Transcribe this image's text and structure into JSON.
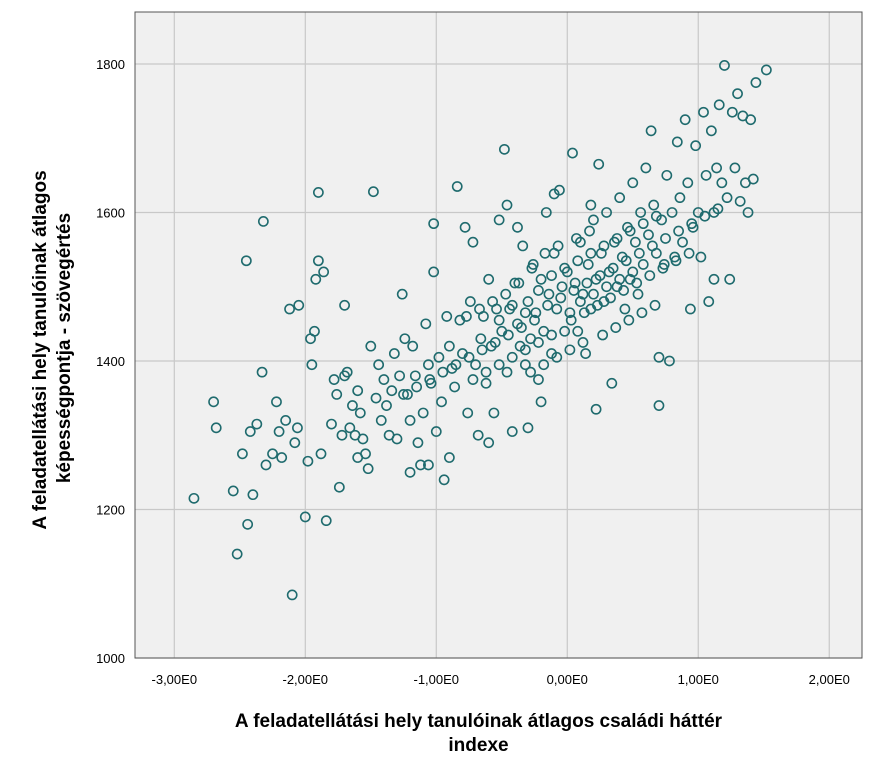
{
  "chart_data": {
    "type": "scatter",
    "title": "",
    "xlabel": [
      "A feladatellátási hely tanulóinak átlagos családi háttér",
      "indexe"
    ],
    "ylabel": [
      "A feladatellátási hely tanulóinak átlagos",
      "képességpontja - szövegértés"
    ],
    "xlim": [
      -3.3,
      2.25
    ],
    "ylim": [
      1000,
      1870
    ],
    "x_ticks": [
      -3,
      -2,
      -1,
      0,
      1,
      2
    ],
    "x_tick_labels": [
      "-3,00E0",
      "-2,00E0",
      "-1,00E0",
      "0,00E0",
      "1,00E0",
      "2,00E0"
    ],
    "y_ticks": [
      1000,
      1200,
      1400,
      1600,
      1800
    ],
    "y_tick_labels": [
      "1000",
      "1200",
      "1400",
      "1600",
      "1800"
    ],
    "grid": true,
    "colors": {
      "marker": "#1f6b6e",
      "plot_bg": "#f0f0f0",
      "grid": "#c8c8c8"
    },
    "points": [
      [
        -2.85,
        1215
      ],
      [
        -2.7,
        1345
      ],
      [
        -2.68,
        1310
      ],
      [
        -2.55,
        1225
      ],
      [
        -2.52,
        1140
      ],
      [
        -2.48,
        1275
      ],
      [
        -2.44,
        1180
      ],
      [
        -2.42,
        1305
      ],
      [
        -2.4,
        1220
      ],
      [
        -2.37,
        1315
      ],
      [
        -2.33,
        1385
      ],
      [
        -2.3,
        1260
      ],
      [
        -2.32,
        1588
      ],
      [
        -2.45,
        1535
      ],
      [
        -2.25,
        1275
      ],
      [
        -2.22,
        1345
      ],
      [
        -2.2,
        1305
      ],
      [
        -2.18,
        1270
      ],
      [
        -2.15,
        1320
      ],
      [
        -2.12,
        1470
      ],
      [
        -2.1,
        1085
      ],
      [
        -2.08,
        1290
      ],
      [
        -2.06,
        1310
      ],
      [
        -2.05,
        1475
      ],
      [
        -2.0,
        1190
      ],
      [
        -1.98,
        1265
      ],
      [
        -1.96,
        1430
      ],
      [
        -1.95,
        1395
      ],
      [
        -1.93,
        1440
      ],
      [
        -1.92,
        1510
      ],
      [
        -1.9,
        1535
      ],
      [
        -1.88,
        1275
      ],
      [
        -1.86,
        1520
      ],
      [
        -1.84,
        1185
      ],
      [
        -1.9,
        1627
      ],
      [
        -1.8,
        1315
      ],
      [
        -1.78,
        1375
      ],
      [
        -1.76,
        1355
      ],
      [
        -1.74,
        1230
      ],
      [
        -1.72,
        1300
      ],
      [
        -1.7,
        1475
      ],
      [
        -1.68,
        1385
      ],
      [
        -1.66,
        1310
      ],
      [
        -1.64,
        1340
      ],
      [
        -1.62,
        1300
      ],
      [
        -1.6,
        1360
      ],
      [
        -1.58,
        1330
      ],
      [
        -1.56,
        1295
      ],
      [
        -1.54,
        1275
      ],
      [
        -1.52,
        1255
      ],
      [
        -1.5,
        1420
      ],
      [
        -1.48,
        1628
      ],
      [
        -1.46,
        1350
      ],
      [
        -1.44,
        1395
      ],
      [
        -1.42,
        1320
      ],
      [
        -1.4,
        1375
      ],
      [
        -1.38,
        1340
      ],
      [
        -1.36,
        1300
      ],
      [
        -1.34,
        1360
      ],
      [
        -1.32,
        1410
      ],
      [
        -1.3,
        1295
      ],
      [
        -1.28,
        1380
      ],
      [
        -1.26,
        1490
      ],
      [
        -1.24,
        1430
      ],
      [
        -1.22,
        1355
      ],
      [
        -1.2,
        1320
      ],
      [
        -1.18,
        1420
      ],
      [
        -1.16,
        1380
      ],
      [
        -1.14,
        1290
      ],
      [
        -1.12,
        1260
      ],
      [
        -1.1,
        1330
      ],
      [
        -1.08,
        1450
      ],
      [
        -1.06,
        1395
      ],
      [
        -1.04,
        1370
      ],
      [
        -1.02,
        1520
      ],
      [
        -1.0,
        1305
      ],
      [
        -0.98,
        1405
      ],
      [
        -0.96,
        1345
      ],
      [
        -0.94,
        1240
      ],
      [
        -0.92,
        1460
      ],
      [
        -0.9,
        1420
      ],
      [
        -0.88,
        1390
      ],
      [
        -0.86,
        1365
      ],
      [
        -0.84,
        1635
      ],
      [
        -0.82,
        1455
      ],
      [
        -0.8,
        1410
      ],
      [
        -0.78,
        1580
      ],
      [
        -0.76,
        1330
      ],
      [
        -0.74,
        1480
      ],
      [
        -0.72,
        1560
      ],
      [
        -0.7,
        1395
      ],
      [
        -0.68,
        1300
      ],
      [
        -0.66,
        1430
      ],
      [
        -0.64,
        1460
      ],
      [
        -0.62,
        1370
      ],
      [
        -0.6,
        1510
      ],
      [
        -0.58,
        1420
      ],
      [
        -0.56,
        1330
      ],
      [
        -0.54,
        1470
      ],
      [
        -0.52,
        1590
      ],
      [
        -0.5,
        1440
      ],
      [
        -0.48,
        1685
      ],
      [
        -0.46,
        1385
      ],
      [
        -0.44,
        1470
      ],
      [
        -0.42,
        1305
      ],
      [
        -0.4,
        1505
      ],
      [
        -0.38,
        1450
      ],
      [
        -0.36,
        1420
      ],
      [
        -0.34,
        1555
      ],
      [
        -0.32,
        1395
      ],
      [
        -0.3,
        1480
      ],
      [
        -0.28,
        1430
      ],
      [
        -0.26,
        1530
      ],
      [
        -0.24,
        1465
      ],
      [
        -0.22,
        1375
      ],
      [
        -0.2,
        1510
      ],
      [
        -0.18,
        1440
      ],
      [
        -0.16,
        1600
      ],
      [
        -0.14,
        1490
      ],
      [
        -0.12,
        1410
      ],
      [
        -0.1,
        1545
      ],
      [
        -0.08,
        1470
      ],
      [
        -0.06,
        1630
      ],
      [
        -0.04,
        1500
      ],
      [
        -0.02,
        1440
      ],
      [
        0.0,
        1520
      ],
      [
        0.02,
        1465
      ],
      [
        0.04,
        1680
      ],
      [
        0.06,
        1505
      ],
      [
        0.08,
        1440
      ],
      [
        0.1,
        1560
      ],
      [
        0.12,
        1490
      ],
      [
        0.14,
        1410
      ],
      [
        0.16,
        1530
      ],
      [
        0.18,
        1470
      ],
      [
        0.2,
        1590
      ],
      [
        0.22,
        1510
      ],
      [
        0.24,
        1665
      ],
      [
        0.26,
        1545
      ],
      [
        0.28,
        1480
      ],
      [
        0.3,
        1600
      ],
      [
        0.32,
        1520
      ],
      [
        0.34,
        1370
      ],
      [
        0.36,
        1560
      ],
      [
        0.38,
        1500
      ],
      [
        0.4,
        1620
      ],
      [
        0.42,
        1540
      ],
      [
        0.44,
        1470
      ],
      [
        0.46,
        1580
      ],
      [
        0.48,
        1510
      ],
      [
        0.5,
        1640
      ],
      [
        0.52,
        1560
      ],
      [
        0.54,
        1490
      ],
      [
        0.56,
        1600
      ],
      [
        0.58,
        1530
      ],
      [
        0.6,
        1660
      ],
      [
        0.62,
        1570
      ],
      [
        0.64,
        1710
      ],
      [
        0.66,
        1610
      ],
      [
        0.68,
        1545
      ],
      [
        0.7,
        1405
      ],
      [
        0.72,
        1590
      ],
      [
        0.74,
        1530
      ],
      [
        0.76,
        1650
      ],
      [
        0.78,
        1400
      ],
      [
        0.8,
        1600
      ],
      [
        0.82,
        1540
      ],
      [
        0.84,
        1695
      ],
      [
        0.86,
        1620
      ],
      [
        0.88,
        1560
      ],
      [
        0.9,
        1725
      ],
      [
        0.92,
        1640
      ],
      [
        0.94,
        1470
      ],
      [
        0.96,
        1580
      ],
      [
        0.98,
        1690
      ],
      [
        1.0,
        1600
      ],
      [
        1.02,
        1540
      ],
      [
        1.04,
        1735
      ],
      [
        1.06,
        1650
      ],
      [
        1.08,
        1480
      ],
      [
        1.1,
        1710
      ],
      [
        1.12,
        1600
      ],
      [
        1.14,
        1660
      ],
      [
        1.16,
        1745
      ],
      [
        1.18,
        1640
      ],
      [
        1.2,
        1798
      ],
      [
        1.22,
        1620
      ],
      [
        1.24,
        1510
      ],
      [
        1.26,
        1735
      ],
      [
        1.28,
        1660
      ],
      [
        1.3,
        1760
      ],
      [
        1.32,
        1615
      ],
      [
        1.34,
        1730
      ],
      [
        1.36,
        1640
      ],
      [
        1.4,
        1725
      ],
      [
        1.42,
        1645
      ],
      [
        1.44,
        1775
      ],
      [
        1.52,
        1792
      ],
      [
        1.38,
        1600
      ],
      [
        1.12,
        1510
      ],
      [
        0.7,
        1340
      ],
      [
        0.22,
        1335
      ],
      [
        -0.2,
        1345
      ],
      [
        -0.3,
        1310
      ],
      [
        -0.6,
        1290
      ],
      [
        -0.9,
        1270
      ],
      [
        -1.06,
        1260
      ],
      [
        -1.2,
        1250
      ],
      [
        -1.6,
        1270
      ],
      [
        -1.7,
        1380
      ],
      [
        -0.1,
        1625
      ],
      [
        0.18,
        1610
      ],
      [
        -0.46,
        1610
      ],
      [
        -1.02,
        1585
      ],
      [
        -0.38,
        1580
      ],
      [
        -0.28,
        1385
      ],
      [
        -0.18,
        1395
      ],
      [
        -0.08,
        1405
      ],
      [
        0.02,
        1415
      ],
      [
        0.12,
        1425
      ],
      [
        -0.25,
        1455
      ],
      [
        -0.15,
        1475
      ],
      [
        -0.05,
        1485
      ],
      [
        0.05,
        1495
      ],
      [
        0.15,
        1505
      ],
      [
        0.25,
        1515
      ],
      [
        0.35,
        1525
      ],
      [
        0.45,
        1535
      ],
      [
        0.55,
        1545
      ],
      [
        0.65,
        1555
      ],
      [
        -0.35,
        1445
      ],
      [
        -0.45,
        1435
      ],
      [
        -0.55,
        1425
      ],
      [
        -0.65,
        1415
      ],
      [
        -0.75,
        1405
      ],
      [
        -0.85,
        1395
      ],
      [
        -0.95,
        1385
      ],
      [
        -1.05,
        1375
      ],
      [
        -1.15,
        1365
      ],
      [
        -1.25,
        1355
      ],
      [
        0.75,
        1565
      ],
      [
        0.85,
        1575
      ],
      [
        0.95,
        1585
      ],
      [
        1.05,
        1595
      ],
      [
        1.15,
        1605
      ],
      [
        -0.22,
        1495
      ],
      [
        -0.12,
        1515
      ],
      [
        -0.02,
        1525
      ],
      [
        0.08,
        1535
      ],
      [
        0.18,
        1545
      ],
      [
        0.28,
        1555
      ],
      [
        0.38,
        1565
      ],
      [
        0.48,
        1575
      ],
      [
        0.58,
        1585
      ],
      [
        0.68,
        1595
      ],
      [
        -0.32,
        1415
      ],
      [
        -0.42,
        1405
      ],
      [
        -0.52,
        1395
      ],
      [
        -0.62,
        1385
      ],
      [
        -0.72,
        1375
      ],
      [
        0.03,
        1455
      ],
      [
        0.13,
        1465
      ],
      [
        0.23,
        1475
      ],
      [
        0.33,
        1485
      ],
      [
        0.43,
        1495
      ],
      [
        0.53,
        1505
      ],
      [
        0.63,
        1515
      ],
      [
        0.73,
        1525
      ],
      [
        0.83,
        1535
      ],
      [
        0.93,
        1545
      ],
      [
        -0.27,
        1525
      ],
      [
        -0.17,
        1545
      ],
      [
        -0.07,
        1555
      ],
      [
        0.07,
        1565
      ],
      [
        0.17,
        1575
      ],
      [
        -0.37,
        1505
      ],
      [
        -0.47,
        1490
      ],
      [
        -0.57,
        1480
      ],
      [
        -0.67,
        1470
      ],
      [
        -0.77,
        1460
      ],
      [
        0.27,
        1435
      ],
      [
        0.37,
        1445
      ],
      [
        0.47,
        1455
      ],
      [
        0.57,
        1465
      ],
      [
        0.67,
        1475
      ],
      [
        -0.12,
        1435
      ],
      [
        -0.22,
        1425
      ],
      [
        -0.32,
        1465
      ],
      [
        -0.42,
        1475
      ],
      [
        -0.52,
        1455
      ],
      [
        0.1,
        1480
      ],
      [
        0.2,
        1490
      ],
      [
        0.3,
        1500
      ],
      [
        0.4,
        1510
      ],
      [
        0.5,
        1520
      ]
    ]
  }
}
